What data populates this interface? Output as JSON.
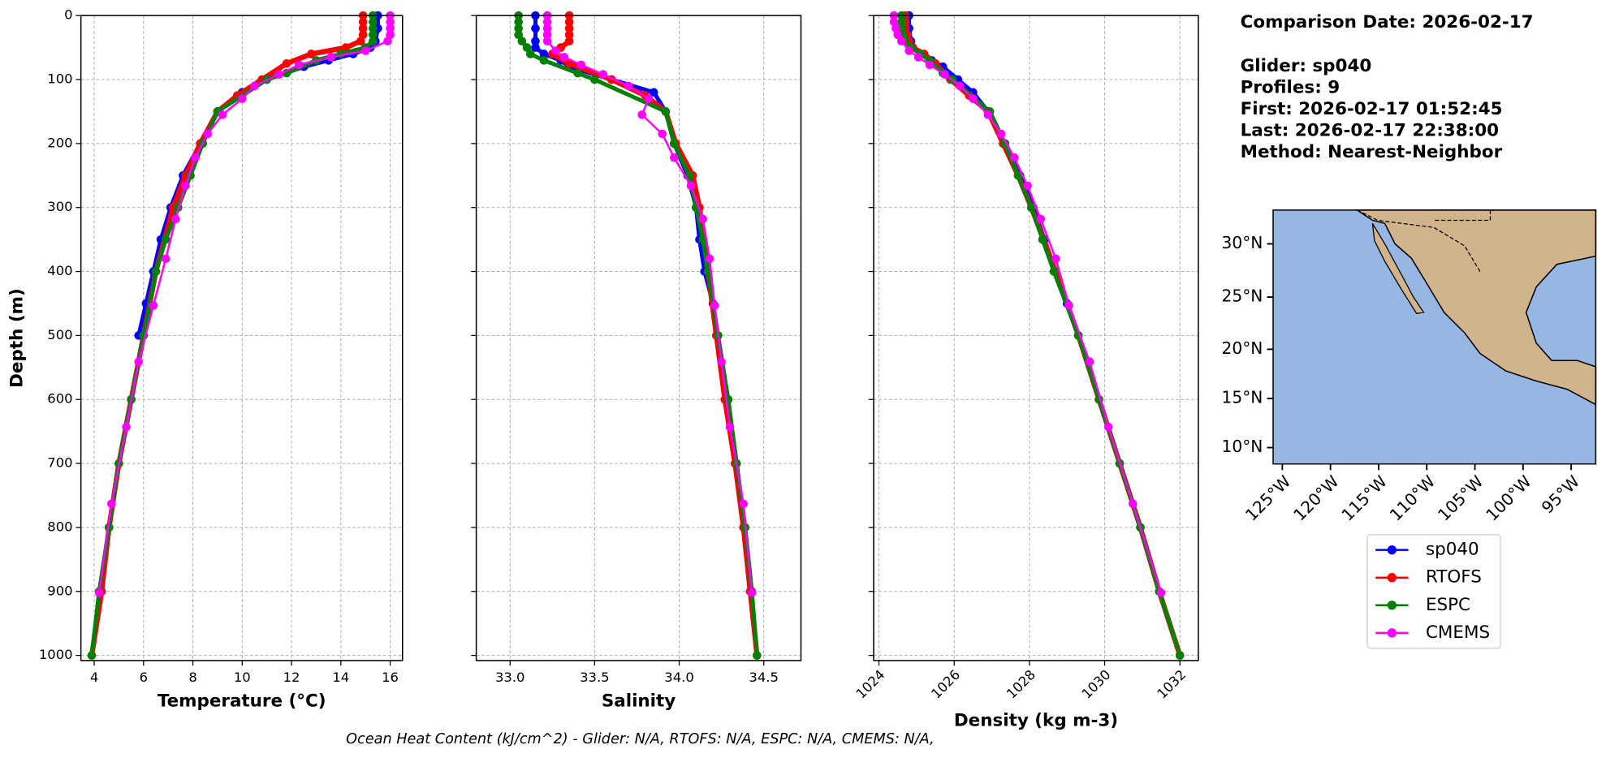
{
  "chart_data": [
    {
      "type": "line",
      "xlabel": "Temperature (°C)",
      "ylabel": "Depth (m)",
      "xlim": [
        3.46,
        16.5
      ],
      "xticks": [
        4,
        6,
        8,
        10,
        12,
        14,
        16
      ],
      "ylim": [
        1008,
        0
      ],
      "yticks": [
        0,
        100,
        200,
        300,
        400,
        500,
        600,
        700,
        800,
        900,
        1000
      ],
      "ytick_labels": true,
      "grid": true,
      "series": [
        {
          "name": "sp040",
          "color": "#0000ff",
          "depth": [
            0,
            20,
            40,
            50,
            60,
            70,
            80,
            100,
            120,
            150,
            200,
            250,
            300,
            350,
            400,
            450,
            500
          ],
          "values": [
            15.5,
            15.5,
            15.4,
            15.2,
            14.5,
            13.5,
            12.5,
            11,
            10,
            9,
            8.3,
            7.6,
            7.1,
            6.7,
            6.4,
            6.1,
            5.8
          ]
        },
        {
          "name": "RTOFS",
          "color": "#ff0000",
          "depth": [
            0,
            10,
            20,
            30,
            40,
            50,
            60,
            75,
            100,
            125,
            150,
            200,
            250,
            300,
            400,
            500,
            600,
            700,
            800,
            900,
            1000
          ],
          "values": [
            14.9,
            14.9,
            14.9,
            14.9,
            14.8,
            14.2,
            12.8,
            11.8,
            10.8,
            9.8,
            9.0,
            8.3,
            7.7,
            7.2,
            6.5,
            6.0,
            5.5,
            5.0,
            4.6,
            4.3,
            3.9
          ]
        },
        {
          "name": "ESPC",
          "color": "#008000",
          "depth": [
            0,
            10,
            20,
            30,
            40,
            50,
            60,
            70,
            90,
            100,
            150,
            200,
            250,
            300,
            350,
            400,
            500,
            600,
            700,
            800,
            900,
            1000
          ],
          "values": [
            15.3,
            15.3,
            15.3,
            15.3,
            15.3,
            15.0,
            14.0,
            13.0,
            11.8,
            11,
            9.0,
            8.4,
            7.9,
            7.4,
            6.9,
            6.5,
            6.0,
            5.5,
            5.0,
            4.6,
            4.2,
            3.9
          ]
        },
        {
          "name": "CMEMS",
          "color": "#ff00ff",
          "depth": [
            0,
            10,
            20,
            30,
            40,
            55,
            65,
            77,
            92,
            110,
            130,
            155,
            185,
            222,
            266,
            318,
            380,
            453,
            541,
            643,
            763,
            902
          ],
          "values": [
            16,
            16,
            16,
            16,
            15.9,
            15,
            13.6,
            12.3,
            11.5,
            10.5,
            10,
            9.2,
            8.6,
            8.1,
            7.7,
            7.3,
            6.9,
            6.4,
            5.8,
            5.3,
            4.7,
            4.2
          ]
        }
      ]
    },
    {
      "type": "line",
      "xlabel": "Salinity",
      "xlim": [
        32.8,
        34.72
      ],
      "xticks": [
        {
          "value": 33,
          "label": "33.0"
        },
        33.5,
        {
          "value": 34,
          "label": "34.0"
        },
        34.5
      ],
      "ylim": [
        1008,
        0
      ],
      "yticks": [
        0,
        100,
        200,
        300,
        400,
        500,
        600,
        700,
        800,
        900,
        1000
      ],
      "ytick_labels": false,
      "grid": true,
      "series": [
        {
          "name": "sp040",
          "color": "#0000ff",
          "depth": [
            0,
            20,
            40,
            50,
            60,
            70,
            80,
            100,
            120,
            150,
            200,
            250,
            300,
            350,
            400,
            450,
            500
          ],
          "values": [
            33.15,
            33.15,
            33.15,
            33.15,
            33.2,
            33.3,
            33.35,
            33.6,
            33.85,
            33.92,
            33.97,
            34.05,
            34.1,
            34.12,
            34.15,
            34.2,
            34.22
          ]
        },
        {
          "name": "RTOFS",
          "color": "#ff0000",
          "depth": [
            0,
            10,
            20,
            30,
            40,
            50,
            60,
            75,
            100,
            125,
            150,
            200,
            250,
            300,
            400,
            500,
            600,
            700,
            800,
            900,
            1000
          ],
          "values": [
            33.35,
            33.35,
            33.35,
            33.35,
            33.35,
            33.3,
            33.25,
            33.35,
            33.6,
            33.8,
            33.92,
            33.98,
            34.08,
            34.12,
            34.17,
            34.22,
            34.27,
            34.33,
            34.38,
            34.42,
            34.46
          ]
        },
        {
          "name": "ESPC",
          "color": "#008000",
          "depth": [
            0,
            10,
            20,
            30,
            40,
            50,
            60,
            70,
            90,
            100,
            150,
            200,
            250,
            300,
            350,
            400,
            500,
            600,
            700,
            800,
            900,
            1000
          ],
          "values": [
            33.05,
            33.05,
            33.05,
            33.05,
            33.07,
            33.1,
            33.12,
            33.2,
            33.4,
            33.5,
            33.92,
            33.97,
            34.06,
            34.1,
            34.14,
            34.17,
            34.23,
            34.29,
            34.34,
            34.39,
            34.43,
            34.46
          ]
        },
        {
          "name": "CMEMS",
          "color": "#ff00ff",
          "depth": [
            0,
            10,
            20,
            30,
            40,
            55,
            65,
            77,
            92,
            110,
            130,
            155,
            185,
            222,
            266,
            318,
            380,
            453,
            541,
            643,
            763,
            902
          ],
          "values": [
            33.22,
            33.22,
            33.22,
            33.22,
            33.22,
            33.27,
            33.32,
            33.42,
            33.55,
            33.7,
            33.82,
            33.78,
            33.9,
            33.97,
            34.07,
            34.14,
            34.18,
            34.21,
            34.25,
            34.3,
            34.38,
            34.43
          ]
        }
      ]
    },
    {
      "type": "line",
      "xlabel": "Density (kg m-3)",
      "xtick_rotation": 45,
      "xlim": [
        1023.86,
        1032.49
      ],
      "xticks": [
        1024,
        1026,
        1028,
        1030,
        1032
      ],
      "ylim": [
        1008,
        0
      ],
      "yticks": [
        0,
        100,
        200,
        300,
        400,
        500,
        600,
        700,
        800,
        900,
        1000
      ],
      "ytick_labels": false,
      "grid": true,
      "series": [
        {
          "name": "sp040",
          "color": "#0000ff",
          "depth": [
            0,
            20,
            40,
            50,
            60,
            70,
            80,
            100,
            120,
            150,
            200,
            250,
            300,
            350,
            400,
            450,
            500
          ],
          "values": [
            1024.8,
            1024.8,
            1024.85,
            1024.9,
            1025.1,
            1025.4,
            1025.7,
            1026.1,
            1026.5,
            1026.9,
            1027.35,
            1027.75,
            1028.1,
            1028.4,
            1028.7,
            1029,
            1029.3
          ]
        },
        {
          "name": "RTOFS",
          "color": "#ff0000",
          "depth": [
            0,
            10,
            20,
            30,
            40,
            50,
            60,
            75,
            100,
            125,
            150,
            200,
            250,
            300,
            400,
            500,
            600,
            700,
            800,
            900,
            1000
          ],
          "values": [
            1024.7,
            1024.7,
            1024.7,
            1024.75,
            1024.8,
            1024.9,
            1025.2,
            1025.5,
            1025.9,
            1026.4,
            1026.9,
            1027.3,
            1027.7,
            1028.05,
            1028.7,
            1029.3,
            1029.85,
            1030.4,
            1030.95,
            1031.45,
            1032
          ]
        },
        {
          "name": "ESPC",
          "color": "#008000",
          "depth": [
            0,
            10,
            20,
            30,
            40,
            50,
            60,
            70,
            90,
            100,
            150,
            200,
            250,
            300,
            350,
            400,
            500,
            600,
            700,
            800,
            900,
            1000
          ],
          "values": [
            1024.6,
            1024.6,
            1024.6,
            1024.65,
            1024.7,
            1024.85,
            1025.1,
            1025.35,
            1025.7,
            1025.95,
            1026.95,
            1027.35,
            1027.7,
            1028.05,
            1028.35,
            1028.65,
            1029.3,
            1029.85,
            1030.4,
            1030.95,
            1031.45,
            1032
          ]
        },
        {
          "name": "CMEMS",
          "color": "#ff00ff",
          "depth": [
            0,
            10,
            20,
            30,
            40,
            55,
            65,
            77,
            92,
            110,
            130,
            155,
            185,
            222,
            266,
            318,
            380,
            453,
            541,
            643,
            763,
            902
          ],
          "values": [
            1024.4,
            1024.4,
            1024.45,
            1024.5,
            1024.6,
            1024.8,
            1025.05,
            1025.35,
            1025.75,
            1026.15,
            1026.5,
            1026.9,
            1027.25,
            1027.6,
            1027.95,
            1028.3,
            1028.7,
            1029.05,
            1029.6,
            1030.1,
            1030.75,
            1031.5
          ]
        }
      ]
    }
  ],
  "info": [
    "Comparison Date: 2026-02-17",
    "Glider: sp040",
    "Profiles: 9",
    "First: 2026-02-17 01:52:45",
    "Last: 2026-02-17 22:38:00",
    "Method: Nearest-Neighbor"
  ],
  "map": {
    "lat_labels": [
      "30°N",
      "25°N",
      "20°N",
      "15°N",
      "10°N"
    ],
    "lon_labels": [
      "125°W",
      "120°W",
      "115°W",
      "110°W",
      "105°W",
      "100°W",
      "95°W"
    ]
  },
  "footer": "Ocean Heat Content (kJ/cm^2) - Glider: N/A,  RTOFS: N/A,  ESPC: N/A,  CMEMS: N/A,"
}
